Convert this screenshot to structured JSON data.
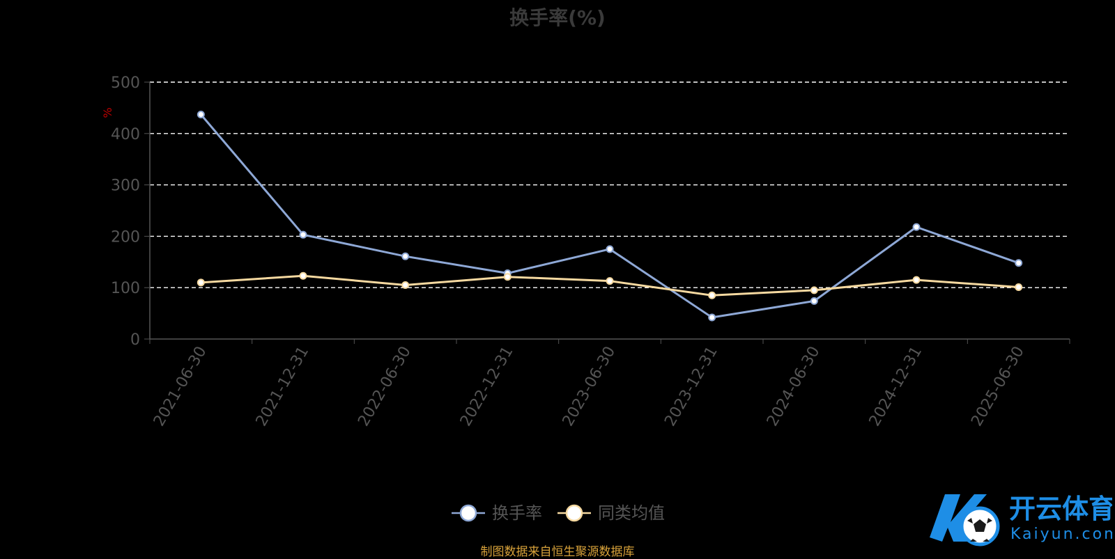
{
  "chart_data": {
    "type": "line",
    "title": "换手率(%)",
    "ylabel": "%",
    "ylim": [
      0,
      500
    ],
    "yticks": [
      0,
      100,
      200,
      300,
      400,
      500
    ],
    "grid": true,
    "legend_position": "bottom-center",
    "categories": [
      "2021-06-30",
      "2021-12-31",
      "2022-06-30",
      "2022-12-31",
      "2023-06-30",
      "2023-12-31",
      "2024-06-30",
      "2024-12-31",
      "2025-06-30"
    ],
    "series": [
      {
        "name": "换手率",
        "color": "#8ea8d6",
        "values": [
          437,
          203,
          161,
          128,
          175,
          42,
          74,
          218,
          148
        ]
      },
      {
        "name": "同类均值",
        "color": "#f6d9a0",
        "values": [
          110,
          123,
          105,
          121,
          113,
          85,
          95,
          115,
          101
        ]
      }
    ]
  },
  "source_note": "制图数据来自恒生聚源数据库",
  "brand": {
    "name_cn": "开云体育",
    "name_en": "Kaiyun.com"
  },
  "colors": {
    "background": "#000000",
    "grid": "#ffffff",
    "axis": "#555555",
    "tick_label": "#555555",
    "ylabel": "#c00000",
    "source": "#d8a23a",
    "logo": "#1e8ee6"
  }
}
